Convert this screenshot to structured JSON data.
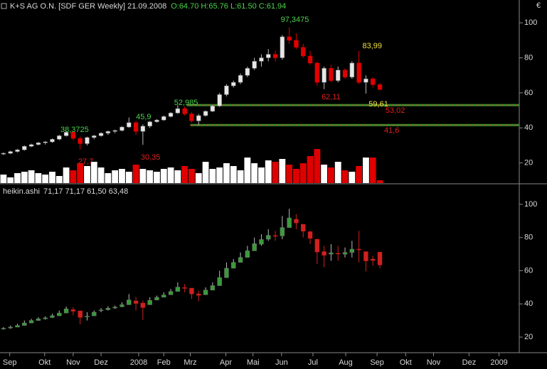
{
  "chart_data": [
    {
      "type": "candlestick",
      "title": "K+S AG O.N. [SDF GER Weekly] 21.09.2008",
      "subtitle": "O:64.70 H:65.76 L:61.50 C:61.94",
      "currency": "€",
      "up_color": "#e6e6e6",
      "down_color": "#e00000",
      "xlim": [
        -0.5,
        74
      ],
      "ylim": [
        8.5,
        113
      ],
      "yticks": [
        20,
        40,
        60,
        80,
        100
      ],
      "ohlc": [
        [
          25,
          26,
          24.5,
          25.5
        ],
        [
          25.5,
          27,
          25,
          26.5
        ],
        [
          26.5,
          28,
          26,
          27.5
        ],
        [
          27.5,
          30,
          27,
          29.5
        ],
        [
          29.5,
          31,
          29,
          30.5
        ],
        [
          30.5,
          32,
          30,
          31.5
        ],
        [
          31.5,
          32.5,
          30.5,
          32
        ],
        [
          32,
          34,
          31.5,
          33.5
        ],
        [
          33.5,
          36,
          33,
          35.5
        ],
        [
          35.5,
          38.37,
          35,
          37.5
        ],
        [
          37.5,
          38,
          33,
          34
        ],
        [
          34,
          35,
          27.7,
          31
        ],
        [
          31,
          35,
          30,
          34.5
        ],
        [
          34.5,
          36,
          33.5,
          35.5
        ],
        [
          35.5,
          37.5,
          35,
          37
        ],
        [
          37,
          38.5,
          36,
          38
        ],
        [
          38,
          39,
          37,
          38.5
        ],
        [
          38.5,
          41,
          38,
          40.5
        ],
        [
          40.5,
          45.9,
          40,
          43
        ],
        [
          43,
          44,
          36,
          38
        ],
        [
          38,
          42,
          30.35,
          41
        ],
        [
          41,
          44,
          40,
          43.5
        ],
        [
          43.5,
          45,
          43,
          44.5
        ],
        [
          44.5,
          47,
          44,
          46.5
        ],
        [
          46.5,
          49,
          46,
          48.5
        ],
        [
          48.5,
          52.985,
          48,
          51
        ],
        [
          51,
          52,
          47,
          48
        ],
        [
          48,
          49,
          43,
          44
        ],
        [
          44,
          48,
          41.6,
          47
        ],
        [
          47,
          50,
          46.5,
          49.5
        ],
        [
          49.5,
          53,
          49,
          52.5
        ],
        [
          52.5,
          60,
          52,
          59
        ],
        [
          59,
          65,
          58,
          64
        ],
        [
          64,
          67,
          63,
          66
        ],
        [
          66,
          71,
          65,
          70
        ],
        [
          70,
          75,
          69,
          74
        ],
        [
          74,
          80,
          73,
          78
        ],
        [
          78,
          82,
          75,
          80
        ],
        [
          80,
          85,
          78,
          82
        ],
        [
          82,
          84,
          78,
          80
        ],
        [
          80,
          93,
          79,
          92
        ],
        [
          92,
          97.3475,
          88,
          90
        ],
        [
          90,
          94,
          85,
          86
        ],
        [
          86,
          88,
          80,
          81
        ],
        [
          81,
          84,
          76,
          77
        ],
        [
          77,
          78,
          64,
          66
        ],
        [
          66,
          75,
          62.11,
          74
        ],
        [
          74,
          76,
          66,
          67
        ],
        [
          67,
          75,
          66,
          73
        ],
        [
          73,
          74,
          68,
          69
        ],
        [
          69,
          78,
          68,
          77
        ],
        [
          77,
          83.99,
          65,
          66
        ],
        [
          66,
          70,
          59.61,
          68
        ],
        [
          68,
          69,
          63,
          64.7
        ],
        [
          64.7,
          65.76,
          61.5,
          61.94
        ]
      ],
      "volume": [
        12,
        8,
        14,
        16,
        18,
        14,
        12,
        16,
        10,
        22,
        18,
        28,
        24,
        30,
        22,
        14,
        18,
        20,
        16,
        26,
        20,
        18,
        16,
        20,
        22,
        18,
        24,
        20,
        14,
        30,
        20,
        22,
        28,
        24,
        18,
        36,
        28,
        22,
        32,
        30,
        34,
        26,
        20,
        28,
        38,
        48,
        26,
        22,
        30,
        18,
        16,
        24,
        36,
        36,
        4
      ],
      "vlim": [
        0,
        100
      ],
      "hlines": [
        {
          "value": 53.02,
          "start": 26.3
        },
        {
          "value": 41.6,
          "start": 26.8
        }
      ],
      "annotations": [
        {
          "text": "38,3725",
          "x": 10.2,
          "y": 38.9,
          "color": "#4cd24c"
        },
        {
          "text": "27,7",
          "x": 11.8,
          "y": 20.6,
          "color": "#e02020"
        },
        {
          "text": "45,9",
          "x": 20.1,
          "y": 46.2,
          "color": "#4cd24c"
        },
        {
          "text": "30,35",
          "x": 21.1,
          "y": 23.1,
          "color": "#e02020"
        },
        {
          "text": "52,985",
          "x": 26.2,
          "y": 54.3,
          "color": "#4cd24c"
        },
        {
          "text": "97,3475",
          "x": 41.8,
          "y": 101.6,
          "color": "#4cd24c"
        },
        {
          "text": "83,99",
          "x": 52.9,
          "y": 86.6,
          "color": "#f0e040"
        },
        {
          "text": "62,11",
          "x": 47,
          "y": 57.5,
          "color": "#e02020"
        },
        {
          "text": "59,61",
          "x": 53.8,
          "y": 53.4,
          "color": "#f0e040"
        },
        {
          "text": "53,02",
          "x": 56.2,
          "y": 49.8,
          "color": "#e02020"
        },
        {
          "text": "41,6",
          "x": 55.7,
          "y": 38.5,
          "color": "#e02020"
        }
      ]
    },
    {
      "type": "candlestick",
      "title": "heikin.ashi",
      "subtitle": "71,17 71,17 61,50 63,48",
      "up_color": "#3a9a3a",
      "down_color": "#d02020",
      "xlim": [
        -0.5,
        74
      ],
      "ylim": [
        10.6,
        111.1
      ],
      "yticks": [
        20,
        40,
        60,
        80,
        100
      ],
      "xticks": [
        {
          "value": 0.9,
          "label": "Sep"
        },
        {
          "value": 5.9,
          "label": "Okt"
        },
        {
          "value": 10,
          "label": "Nov"
        },
        {
          "value": 14,
          "label": "Dez"
        },
        {
          "value": 19.4,
          "label": "2008"
        },
        {
          "value": 23,
          "label": "Feb"
        },
        {
          "value": 26.8,
          "label": "Mrz"
        },
        {
          "value": 31.9,
          "label": "Apr"
        },
        {
          "value": 35.8,
          "label": "Mai"
        },
        {
          "value": 39.9,
          "label": "Jun"
        },
        {
          "value": 44.4,
          "label": "Jul"
        },
        {
          "value": 49.1,
          "label": "Aug"
        },
        {
          "value": 53.6,
          "label": "Sep"
        },
        {
          "value": 57.7,
          "label": "Okt"
        },
        {
          "value": 61.7,
          "label": "Nov"
        },
        {
          "value": 66.8,
          "label": "Dez"
        },
        {
          "value": 71.1,
          "label": "2009"
        }
      ],
      "ohlc": [
        [
          25,
          26,
          24.5,
          25.3
        ],
        [
          25.5,
          27,
          25,
          26
        ],
        [
          26,
          28,
          26,
          27
        ],
        [
          27,
          30,
          27,
          28.5
        ],
        [
          28.5,
          31,
          28.5,
          30
        ],
        [
          30,
          32,
          30,
          31
        ],
        [
          31,
          32.5,
          30.5,
          31.6
        ],
        [
          31.8,
          34,
          31.5,
          32.9
        ],
        [
          32.8,
          36,
          32.8,
          34.5
        ],
        [
          34.5,
          38.37,
          34.5,
          37
        ],
        [
          36.5,
          38,
          33,
          35.6
        ],
        [
          35.8,
          35.8,
          27.7,
          31.9
        ],
        [
          32.5,
          35,
          30,
          32.6
        ],
        [
          32.8,
          36,
          32.8,
          35
        ],
        [
          36,
          37.5,
          35,
          36.3
        ],
        [
          36.5,
          38.5,
          36,
          37.4
        ],
        [
          37.5,
          39,
          37,
          38.1
        ],
        [
          38.3,
          41,
          38,
          39.5
        ],
        [
          39.5,
          45.9,
          39.5,
          42.4
        ],
        [
          41.8,
          44,
          36,
          40.3
        ],
        [
          40.5,
          42,
          30.35,
          37.8
        ],
        [
          39.5,
          44,
          39.5,
          42.1
        ],
        [
          42.3,
          45,
          42.3,
          44
        ],
        [
          44,
          47,
          44,
          45.4
        ],
        [
          45.5,
          49,
          45.5,
          47.5
        ],
        [
          47.5,
          52.985,
          47.5,
          50.1
        ],
        [
          49.8,
          52,
          47,
          49.5
        ],
        [
          49.5,
          49.5,
          43,
          46
        ],
        [
          46,
          48,
          41.6,
          45.2
        ],
        [
          45.5,
          50,
          45.5,
          48.3
        ],
        [
          48.3,
          53,
          48.3,
          51
        ],
        [
          51,
          60,
          51,
          55.9
        ],
        [
          55.8,
          65,
          55.8,
          61.5
        ],
        [
          61.5,
          67,
          61.5,
          65
        ],
        [
          65,
          71,
          65,
          68
        ],
        [
          68,
          75,
          68,
          72
        ],
        [
          72,
          80,
          72,
          76.3
        ],
        [
          76,
          82,
          75,
          78.8
        ],
        [
          79,
          85,
          78,
          81.3
        ],
        [
          81.2,
          84,
          78,
          81
        ],
        [
          81,
          93,
          79,
          86
        ],
        [
          86,
          97.35,
          86,
          91.8
        ],
        [
          91,
          94,
          85,
          88.8
        ],
        [
          88,
          88,
          80,
          83.8
        ],
        [
          83.5,
          84,
          76,
          79.5
        ],
        [
          79,
          79,
          64,
          71.3
        ],
        [
          71.5,
          75,
          62.11,
          69.3
        ],
        [
          70,
          76,
          66,
          70.8
        ],
        [
          70.5,
          75,
          66,
          70.3
        ],
        [
          70,
          74,
          68,
          71
        ],
        [
          71,
          78,
          68,
          73
        ],
        [
          73,
          83.99,
          65,
          72.8
        ],
        [
          71.5,
          71.5,
          59.61,
          65.9
        ],
        [
          67,
          69,
          63,
          66.2
        ],
        [
          71.17,
          71.17,
          61.5,
          63.48
        ]
      ]
    }
  ]
}
